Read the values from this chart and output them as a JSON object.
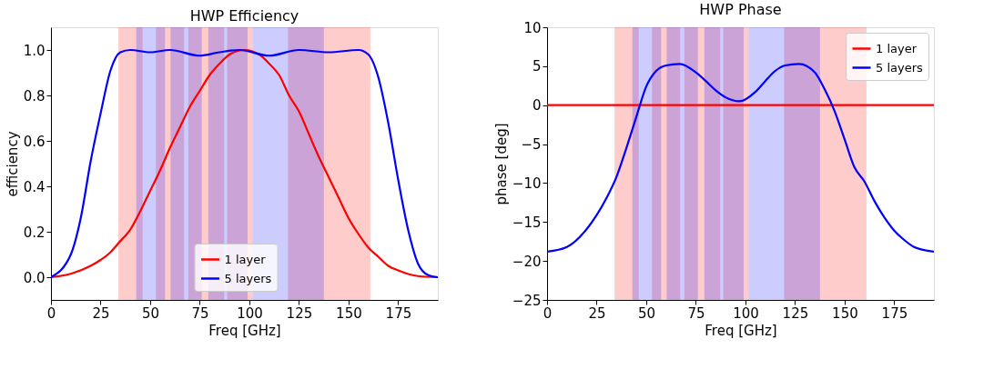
{
  "chart_data": [
    {
      "type": "line",
      "title": "HWP Efficiency",
      "xlabel": "Freq [GHz]",
      "ylabel": "efficiency",
      "xlim": [
        0,
        195
      ],
      "ylim": [
        -0.1,
        1.1
      ],
      "xticks": [
        0,
        25,
        50,
        75,
        100,
        125,
        150,
        175
      ],
      "yticks": [
        {
          "value": 0,
          "label": "0.0"
        },
        {
          "value": 0.2,
          "label": "0.2"
        },
        {
          "value": 0.4,
          "label": "0.4"
        },
        {
          "value": 0.6,
          "label": "0.6"
        },
        {
          "value": 0.8,
          "label": "0.8"
        },
        {
          "value": 1,
          "label": "1.0"
        }
      ],
      "grid": false,
      "legend": "bottom",
      "marker": "none",
      "line_style": "solid",
      "series": [
        {
          "name": "1 layer",
          "color": "#ff0000",
          "x": [
            0,
            10,
            20,
            25,
            30,
            34,
            40,
            45,
            50,
            55,
            60,
            65,
            70,
            75,
            80,
            85,
            90,
            97.5,
            105,
            110,
            115,
            120,
            125,
            130,
            135,
            140,
            145,
            150,
            155,
            160,
            165,
            170,
            175,
            185,
            195
          ],
          "values": [
            0,
            0.015,
            0.05,
            0.076,
            0.11,
            0.15,
            0.21,
            0.29,
            0.38,
            0.47,
            0.57,
            0.66,
            0.75,
            0.82,
            0.89,
            0.94,
            0.98,
            1.0,
            0.98,
            0.94,
            0.89,
            0.8,
            0.73,
            0.63,
            0.53,
            0.44,
            0.35,
            0.26,
            0.19,
            0.13,
            0.09,
            0.05,
            0.03,
            0.005,
            0
          ]
        },
        {
          "name": "5 layers",
          "color": "#0000ff",
          "x": [
            0,
            10,
            15,
            20,
            25,
            30,
            35,
            40,
            50,
            60,
            75,
            85,
            95,
            110,
            125,
            140,
            155,
            160,
            165,
            170,
            175,
            180,
            185,
            190,
            195
          ],
          "values": [
            0,
            0.1,
            0.26,
            0.51,
            0.72,
            0.91,
            0.99,
            1.0,
            0.99,
            1.0,
            0.975,
            0.99,
            1.0,
            0.975,
            1.0,
            0.99,
            1.0,
            0.98,
            0.88,
            0.68,
            0.43,
            0.21,
            0.06,
            0.01,
            0
          ]
        }
      ],
      "bands": [
        {
          "axis": "x",
          "from": 34,
          "to": 46.2,
          "color": "#ff0000"
        },
        {
          "axis": "x",
          "from": 52.9,
          "to": 67.1,
          "color": "#ff0000"
        },
        {
          "axis": "x",
          "from": 69.2,
          "to": 87.3,
          "color": "#ff0000"
        },
        {
          "axis": "x",
          "from": 88.8,
          "to": 101.6,
          "color": "#ff0000"
        },
        {
          "axis": "x",
          "from": 119.5,
          "to": 161,
          "color": "#ff0000"
        },
        {
          "axis": "x",
          "from": 43,
          "to": 57.5,
          "color": "#0000ff"
        },
        {
          "axis": "x",
          "from": 60.3,
          "to": 76,
          "color": "#0000ff"
        },
        {
          "axis": "x",
          "from": 79.3,
          "to": 99.1,
          "color": "#0000ff"
        },
        {
          "axis": "x",
          "from": 101.6,
          "to": 137.6,
          "color": "#0000ff"
        }
      ]
    },
    {
      "type": "line",
      "title": "HWP Phase",
      "xlabel": "Freq [GHz]",
      "ylabel": "phase [deg]",
      "xlim": [
        0,
        195
      ],
      "ylim": [
        -25,
        10
      ],
      "xticks": [
        0,
        25,
        50,
        75,
        100,
        125,
        150,
        175
      ],
      "yticks": [
        {
          "value": -25,
          "label": "−25"
        },
        {
          "value": -20,
          "label": "−20"
        },
        {
          "value": -15,
          "label": "−15"
        },
        {
          "value": -10,
          "label": "−10"
        },
        {
          "value": -5,
          "label": "−5"
        },
        0,
        5,
        10
      ],
      "grid": false,
      "legend": "top right",
      "marker": "none",
      "line_style": "solid",
      "series": [
        {
          "name": "1 layer",
          "color": "#ff0000",
          "x": [
            0,
            195
          ],
          "values": [
            0,
            0
          ]
        },
        {
          "name": "5 layers",
          "color": "#0000ff",
          "x": [
            0,
            10,
            20,
            25,
            30,
            35,
            40,
            45,
            50,
            55,
            60,
            67,
            75,
            80,
            85,
            90,
            97,
            105,
            110,
            115,
            120,
            127,
            135,
            140,
            145,
            150,
            155,
            160,
            165,
            170,
            175,
            180,
            185,
            195
          ],
          "values": [
            -18.8,
            -18.2,
            -15.9,
            -14.1,
            -11.9,
            -9.2,
            -5.5,
            -1.5,
            2.4,
            4.4,
            5.1,
            5.3,
            4.2,
            3.1,
            1.9,
            1.0,
            0.5,
            1.7,
            3.1,
            4.4,
            5.1,
            5.3,
            4.2,
            2.0,
            -0.8,
            -4.4,
            -8.0,
            -9.8,
            -12.3,
            -14.4,
            -16.1,
            -17.3,
            -18.2,
            -18.8
          ]
        }
      ],
      "bands": [
        {
          "axis": "x",
          "from": 34,
          "to": 46.2,
          "color": "#ff0000"
        },
        {
          "axis": "x",
          "from": 52.9,
          "to": 67.1,
          "color": "#ff0000"
        },
        {
          "axis": "x",
          "from": 69.2,
          "to": 87.3,
          "color": "#ff0000"
        },
        {
          "axis": "x",
          "from": 88.8,
          "to": 101.6,
          "color": "#ff0000"
        },
        {
          "axis": "x",
          "from": 119.5,
          "to": 161,
          "color": "#ff0000"
        },
        {
          "axis": "x",
          "from": 43,
          "to": 57.5,
          "color": "#0000ff"
        },
        {
          "axis": "x",
          "from": 60.3,
          "to": 76,
          "color": "#0000ff"
        },
        {
          "axis": "x",
          "from": 79.3,
          "to": 99.1,
          "color": "#0000ff"
        },
        {
          "axis": "x",
          "from": 101.6,
          "to": 137.6,
          "color": "#0000ff"
        }
      ]
    }
  ]
}
